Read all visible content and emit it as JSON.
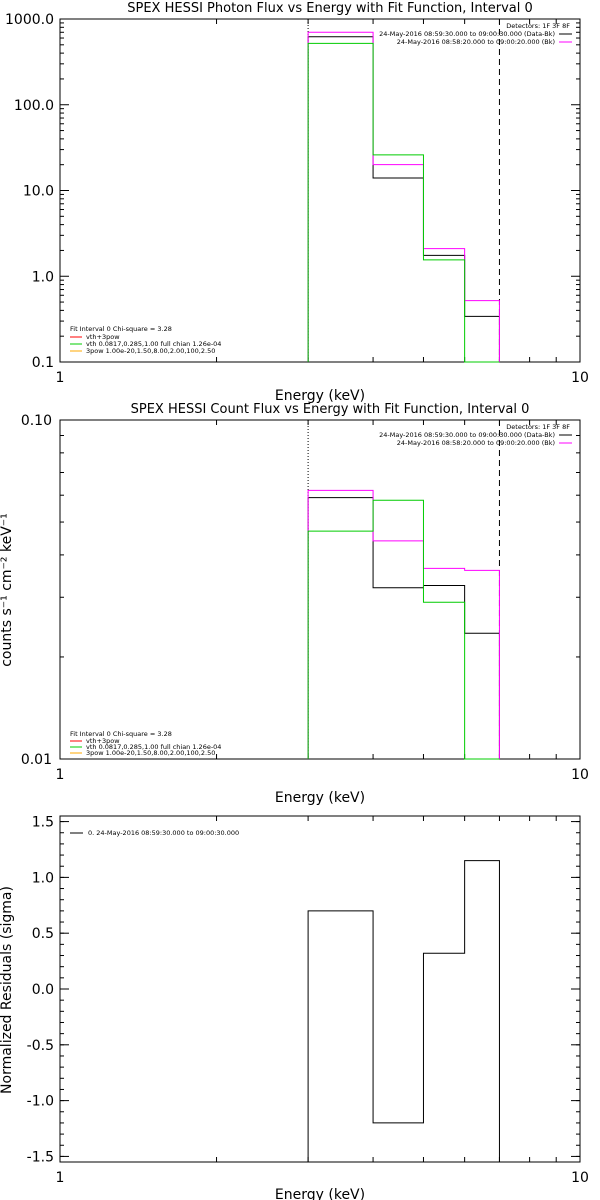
{
  "chart_data": [
    {
      "type": "line",
      "title": "SPEX HESSI Photon Flux vs Energy with Fit Function, Interval 0",
      "xlabel": "Energy (keV)",
      "ylabel": "",
      "xscale": "log",
      "yscale": "log",
      "xlim": [
        1,
        10
      ],
      "ylim": [
        0.1,
        1000
      ],
      "x_ticks": [
        "1",
        "10"
      ],
      "y_ticks": [
        "1000.0",
        "100.0",
        "10.0",
        "1.0",
        "0.1"
      ],
      "y_tick_values": [
        1000,
        100,
        10,
        1,
        0.1
      ],
      "vlines": [
        {
          "x": 3.0,
          "style": "dotted",
          "color": "#000000"
        },
        {
          "x": 7.0,
          "style": "dashed",
          "color": "#000000"
        }
      ],
      "top_legend": {
        "title": "Detectors: 1F 3F 8F",
        "entries": [
          {
            "label": "24-May-2016 08:59:30.000 to 09:00:30.000 (Data-Bk)",
            "color": "#000000"
          },
          {
            "label": "24-May-2016 08:58:20.000 to 09:00:20.000 (Bk)",
            "color": "#ff00ff"
          }
        ]
      },
      "fit_legend": {
        "title": "Fit Interval 0   Chi-square = 3.28",
        "entries": [
          {
            "label": "vth+3pow",
            "color": "#ff0000"
          },
          {
            "label": "vth 0.0817,0.285,1.00  full chian 1.26e-04",
            "color": "#00cc00"
          },
          {
            "label": "3pow 1.00e-20,1.50,8.00,2.00,100,2.50",
            "color": "#ffaa00"
          }
        ]
      },
      "edges": [
        3.0,
        4.0,
        5.0,
        6.0,
        7.0
      ],
      "series": [
        {
          "color": "#000000",
          "values": [
            620,
            14,
            1.75,
            0.34
          ]
        },
        {
          "color": "#ff00ff",
          "values": [
            700,
            20,
            2.1,
            0.52
          ]
        },
        {
          "color": "#00cc00",
          "values": [
            520,
            26,
            1.55,
            0.095
          ]
        }
      ]
    },
    {
      "type": "line",
      "title": "SPEX HESSI Count Flux vs Energy with Fit Function, Interval 0",
      "xlabel": "Energy (keV)",
      "ylabel": "counts s⁻¹ cm⁻² keV⁻¹",
      "xscale": "log",
      "yscale": "log",
      "xlim": [
        1,
        10
      ],
      "ylim": [
        0.01,
        0.1
      ],
      "x_ticks": [
        "1",
        "10"
      ],
      "y_ticks": [
        "0.10",
        "0.01"
      ],
      "y_tick_values": [
        0.1,
        0.01
      ],
      "vlines": [
        {
          "x": 3.0,
          "style": "dotted",
          "color": "#000000"
        },
        {
          "x": 7.0,
          "style": "dashed",
          "color": "#000000"
        }
      ],
      "top_legend": {
        "title": "Detectors: 1F 3F 8F",
        "entries": [
          {
            "label": "24-May-2016 08:59:30.000 to 09:00:30.000 (Data-Bk)",
            "color": "#000000"
          },
          {
            "label": "24-May-2016 08:58:20.000 to 09:00:20.000 (Bk)",
            "color": "#ff00ff"
          }
        ]
      },
      "fit_legend": {
        "title": "Fit Interval 0   Chi-square = 3.28",
        "entries": [
          {
            "label": "vth+3pow",
            "color": "#ff0000"
          },
          {
            "label": "vth 0.0817,0.285,1.00  full chian 1.26e-04",
            "color": "#00cc00"
          },
          {
            "label": "3pow 1.00e-20,1.50,8.00,2.00,100,2.50",
            "color": "#ffaa00"
          }
        ]
      },
      "edges": [
        3.0,
        4.0,
        5.0,
        6.0,
        7.0
      ],
      "series": [
        {
          "color": "#000000",
          "values": [
            0.059,
            0.032,
            0.0325,
            0.0235
          ]
        },
        {
          "color": "#ff00ff",
          "values": [
            0.062,
            0.044,
            0.0365,
            0.036
          ]
        },
        {
          "color": "#00cc00",
          "values": [
            0.047,
            0.058,
            0.029,
            0.01
          ]
        }
      ]
    },
    {
      "type": "line",
      "title": "",
      "xlabel": "Energy (keV)",
      "ylabel": "Normalized Residuals (sigma)",
      "xscale": "log",
      "yscale": "linear",
      "xlim": [
        1,
        10
      ],
      "ylim": [
        -1.55,
        1.55
      ],
      "x_ticks": [
        "1",
        "10"
      ],
      "y_ticks": [
        "1.5",
        "1.0",
        "0.5",
        "0.0",
        "-0.5",
        "-1.0",
        "-1.5"
      ],
      "y_tick_values": [
        1.5,
        1.0,
        0.5,
        0.0,
        -0.5,
        -1.0,
        -1.5
      ],
      "legend": {
        "entries": [
          {
            "label": "0. 24-May-2016 08:59:30.000 to 09:00:30.000",
            "color": "#000000"
          }
        ]
      },
      "edges": [
        3.0,
        4.0,
        5.0,
        6.0,
        7.0
      ],
      "series": [
        {
          "color": "#000000",
          "values": [
            0.7,
            -1.2,
            0.32,
            1.15
          ]
        }
      ]
    }
  ]
}
